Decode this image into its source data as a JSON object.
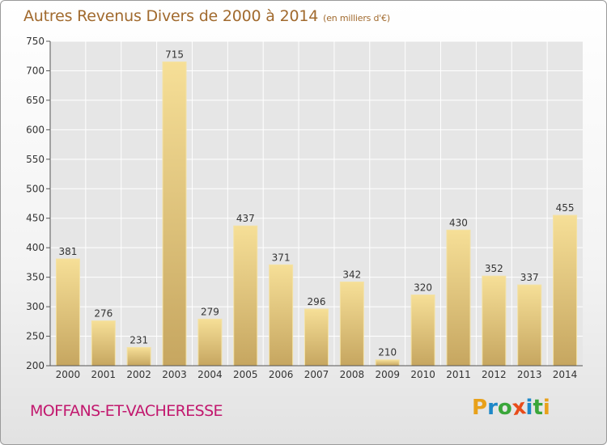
{
  "title": "Autres Revenus Divers de 2000 à 2014",
  "unit": "(en milliers d'€)",
  "commune": "MOFFANS-ET-VACHERESSE",
  "logo": {
    "letters": [
      "P",
      "r",
      "o",
      "x",
      "i",
      "t",
      "i"
    ],
    "colors": [
      "#e8a11a",
      "#1e88c8",
      "#3aa63a",
      "#e84c1a",
      "#1e88c8",
      "#3aa63a",
      "#e8a11a"
    ]
  },
  "chart_data": {
    "type": "bar",
    "categories": [
      "2000",
      "2001",
      "2002",
      "2003",
      "2004",
      "2005",
      "2006",
      "2007",
      "2008",
      "2009",
      "2010",
      "2011",
      "2012",
      "2013",
      "2014"
    ],
    "values": [
      381,
      276,
      231,
      715,
      279,
      437,
      371,
      296,
      342,
      210,
      320,
      430,
      352,
      337,
      455
    ],
    "ylim": [
      200,
      750
    ],
    "yticks": [
      200,
      250,
      300,
      350,
      400,
      450,
      500,
      550,
      600,
      650,
      700,
      750
    ],
    "grid": true,
    "bar_color": "#e7cb80"
  }
}
